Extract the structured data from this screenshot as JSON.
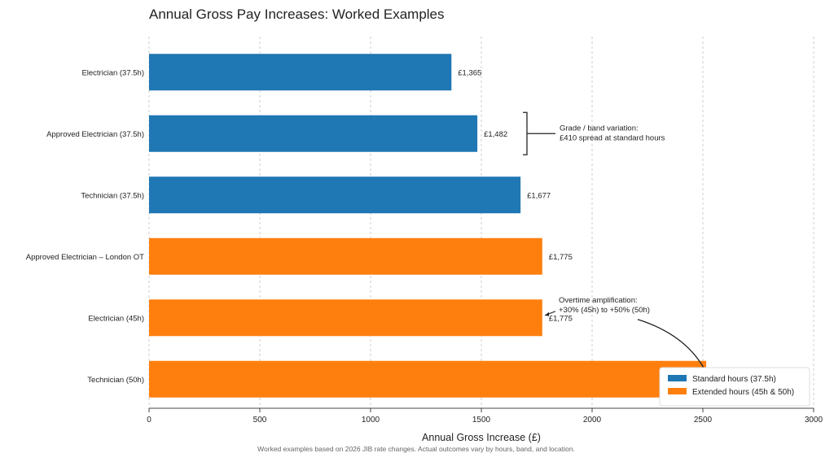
{
  "chart_data": {
    "type": "bar",
    "orientation": "horizontal",
    "title": "Annual Gross Pay Increases: Worked Examples",
    "xlabel": "Annual Gross Increase (£)",
    "ylabel": "",
    "footnote": "Worked examples based on 2026 JIB rate changes. Actual outcomes vary by hours, band, and location.",
    "xlim": [
      0,
      3000
    ],
    "xticks": [
      0,
      500,
      1000,
      1500,
      2000,
      2500,
      3000
    ],
    "grid": "vertical dashed",
    "categories": [
      "Electrician (37.5h)",
      "Approved Electrician (37.5h)",
      "Technician (37.5h)",
      "Approved Electrician – London OT",
      "Electrician (45h)",
      "Technician (50h)"
    ],
    "values": [
      1365,
      1482,
      1677,
      1775,
      1775,
      2515
    ],
    "value_labels": [
      "£1,365",
      "£1,482",
      "£1,677",
      "£1,775",
      "£1,775",
      ""
    ],
    "groups": [
      "standard",
      "standard",
      "standard",
      "extended",
      "extended",
      "extended"
    ],
    "series": [
      {
        "name": "Standard hours (37.5h)",
        "key": "standard",
        "color": "#1f77b4"
      },
      {
        "name": "Extended hours (45h & 50h)",
        "key": "extended",
        "color": "#ff7f0e"
      }
    ],
    "legend": "bottom-right",
    "annotations": [
      {
        "text": [
          "Grade / band variation:",
          "£410 spread at standard hours"
        ],
        "type": "bracket",
        "target": "Approved Electrician (37.5h)"
      },
      {
        "text": [
          "Overtime amplification:",
          "+30% (45h) to +50% (50h)"
        ],
        "type": "arrows",
        "targets": [
          "Electrician (45h)",
          "Technician (50h)"
        ]
      }
    ]
  }
}
